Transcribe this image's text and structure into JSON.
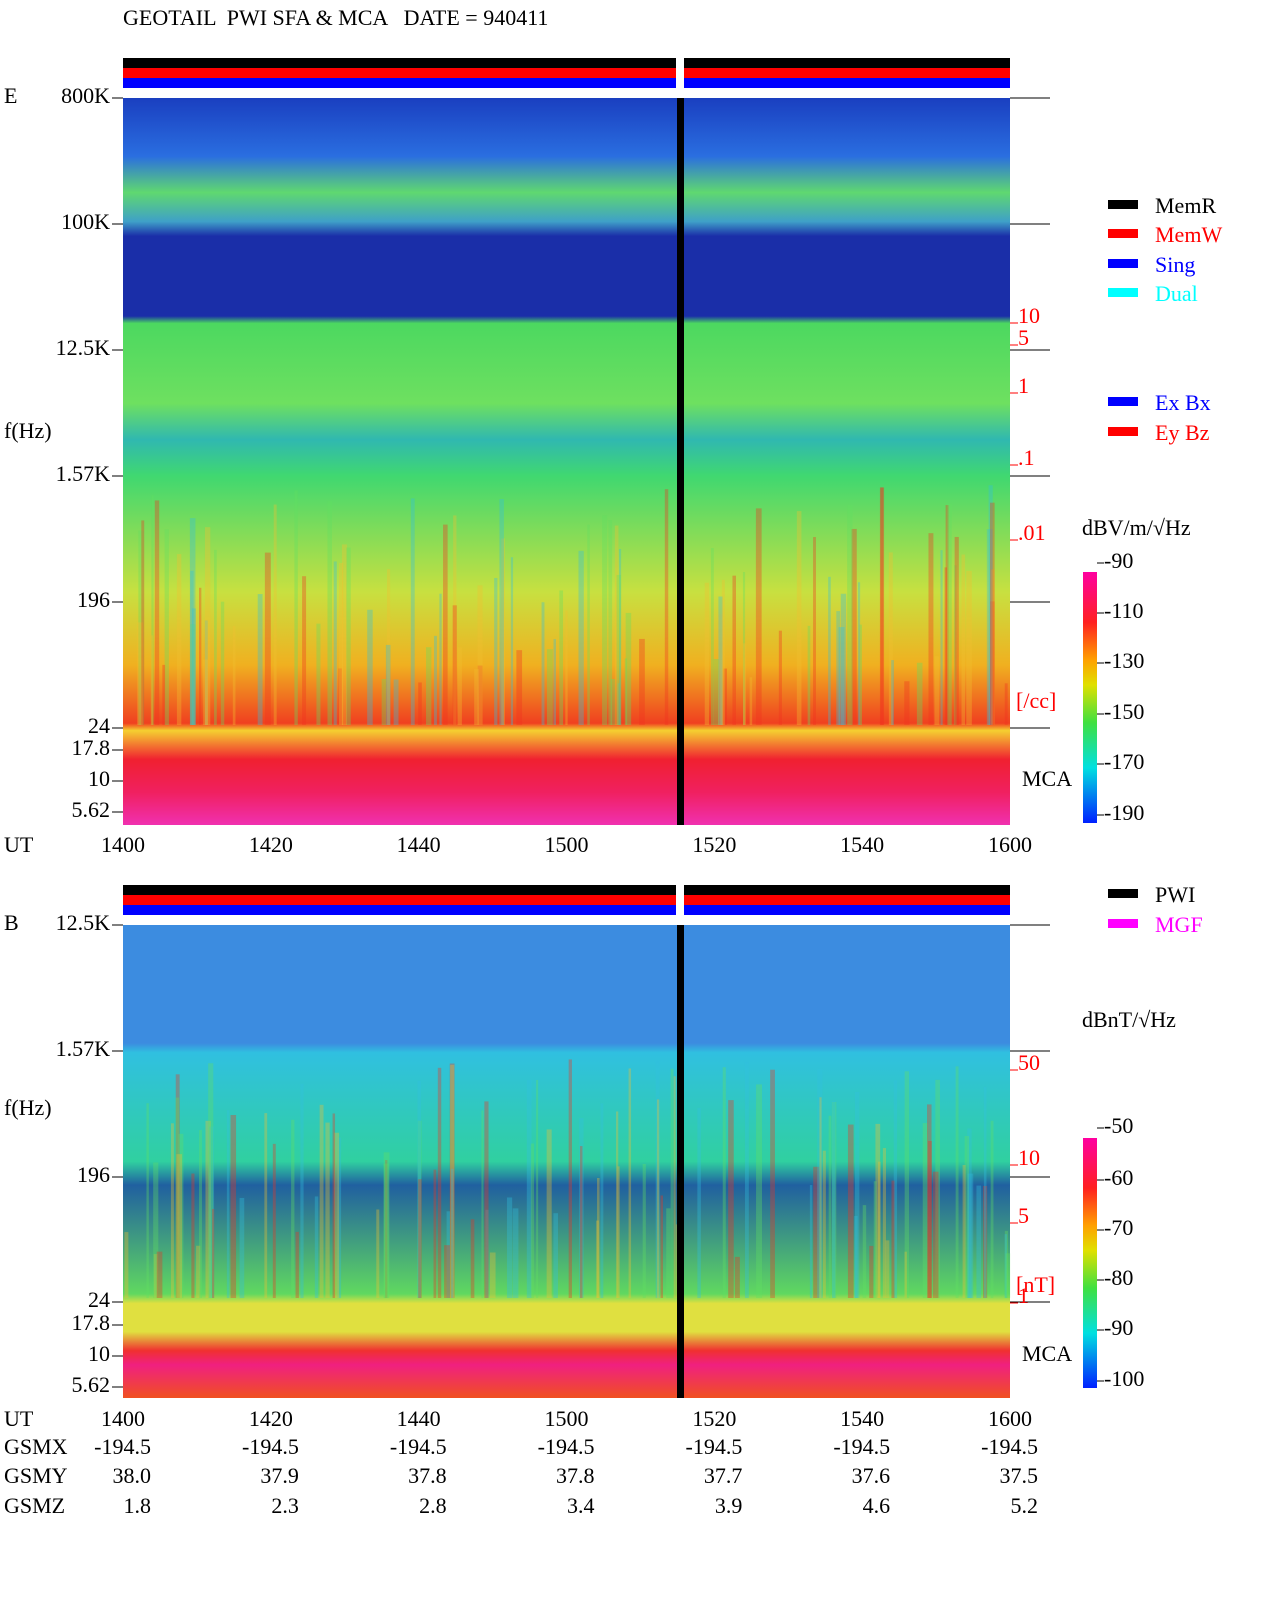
{
  "header": {
    "title": "GEOTAIL  PWI SFA & MCA   DATE = 940411"
  },
  "time_axis": {
    "label": "UT",
    "ticks": [
      "1400",
      "1420",
      "1440",
      "1500",
      "1520",
      "1540",
      "1600"
    ]
  },
  "panels": [
    {
      "label": "E",
      "y_label": "f(Hz)",
      "freq_ticks": [
        "800K",
        "100K",
        "12.5K",
        "1.57K",
        "196",
        "24",
        "17.8",
        "10",
        "5.62"
      ],
      "right_ticks": [
        "10",
        "5",
        "1",
        ".1",
        ".01"
      ],
      "right_unit": "[/cc]",
      "mca": "MCA",
      "colorbar": {
        "title": "dBV/m/√Hz",
        "ticks": [
          "-90",
          "-110",
          "-130",
          "-150",
          "-170",
          "-190"
        ]
      },
      "legends": [
        {
          "label": "MemR",
          "color": "#000000"
        },
        {
          "label": "MemW",
          "color": "#ff0000"
        },
        {
          "label": "Sing",
          "color": "#0000ff"
        },
        {
          "label": "Dual",
          "color": "#00ffff"
        },
        {
          "label": "Ex Bx",
          "color": "#0000ff"
        },
        {
          "label": "Ey Bz",
          "color": "#ff0000"
        }
      ]
    },
    {
      "label": "B",
      "y_label": "f(Hz)",
      "freq_ticks": [
        "12.5K",
        "1.57K",
        "196",
        "24",
        "17.8",
        "10",
        "5.62"
      ],
      "right_ticks": [
        "50",
        "10",
        "5",
        "1"
      ],
      "right_unit": "[nT]",
      "mca": "MCA",
      "colorbar": {
        "title": "dBnT/√Hz",
        "ticks": [
          "-50",
          "-60",
          "-70",
          "-80",
          "-90",
          "-100"
        ]
      },
      "legends": [
        {
          "label": "PWI",
          "color": "#000000"
        },
        {
          "label": "MGF",
          "color": "#ff00ff"
        }
      ]
    }
  ],
  "orbit": [
    {
      "label": "GSMX",
      "values": [
        "-194.5",
        "-194.5",
        "-194.5",
        "-194.5",
        "-194.5",
        "-194.5",
        "-194.5"
      ]
    },
    {
      "label": "GSMY",
      "values": [
        "38.0",
        "37.9",
        "37.8",
        "37.8",
        "37.7",
        "37.6",
        "37.5"
      ]
    },
    {
      "label": "GSMZ",
      "values": [
        "1.8",
        "2.3",
        "2.8",
        "3.4",
        "3.9",
        "4.6",
        "5.2"
      ]
    }
  ]
}
